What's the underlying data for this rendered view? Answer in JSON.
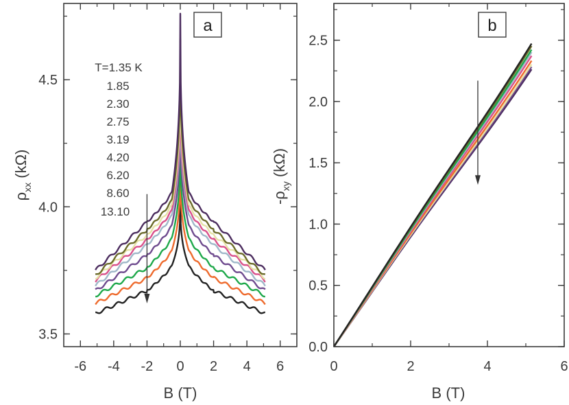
{
  "chart_data": [
    {
      "panel": "a",
      "type": "line",
      "xlabel": "B (T)",
      "ylabel_main": "ρ",
      "ylabel_sub": "xx",
      "ylabel_unit": " (kΩ)",
      "xlim": [
        -7,
        7
      ],
      "ylim": [
        3.45,
        4.8
      ],
      "xticks": [
        -6,
        -4,
        -2,
        0,
        2,
        4,
        6
      ],
      "yticks": [
        3.5,
        4.0,
        4.5
      ],
      "ytick_labels": [
        "3.5",
        "4.0",
        "4.5"
      ],
      "legend_title": "T=1.35 K",
      "legend_values": [
        "1.85",
        "2.30",
        "2.75",
        "3.19",
        "4.20",
        "6.20",
        "8.60",
        "13.10"
      ],
      "arrow": {
        "x": -2,
        "from_y": 4.05,
        "to_y": 3.62
      },
      "series": [
        {
          "name": "T=1.35 K",
          "color": "#4b2c5e",
          "peak": 4.76,
          "v05": 4.06,
          "v2": 3.94,
          "v5": 3.75
        },
        {
          "name": "1.85",
          "color": "#6b6b2a",
          "peak": 4.66,
          "v05": 4.03,
          "v2": 3.91,
          "v5": 3.73
        },
        {
          "name": "2.30",
          "color": "#e6e2a6",
          "peak": 4.58,
          "v05": 4.01,
          "v2": 3.89,
          "v5": 3.72
        },
        {
          "name": "2.75",
          "color": "#d9508a",
          "peak": 4.52,
          "v05": 3.99,
          "v2": 3.87,
          "v5": 3.71
        },
        {
          "name": "3.19",
          "color": "#9fb7c9",
          "peak": 4.47,
          "v05": 3.97,
          "v2": 3.85,
          "v5": 3.69
        },
        {
          "name": "4.20",
          "color": "#6e4a8e",
          "peak": 4.4,
          "v05": 3.93,
          "v2": 3.81,
          "v5": 3.67
        },
        {
          "name": "6.20",
          "color": "#1ea84a",
          "peak": 4.28,
          "v05": 3.88,
          "v2": 3.76,
          "v5": 3.65
        },
        {
          "name": "8.60",
          "color": "#ee6a2c",
          "peak": 4.18,
          "v05": 3.83,
          "v2": 3.72,
          "v5": 3.62
        },
        {
          "name": "13.10",
          "color": "#222222",
          "peak": 4.04,
          "v05": 3.77,
          "v2": 3.67,
          "v5": 3.58
        }
      ]
    },
    {
      "panel": "b",
      "type": "line",
      "xlabel": "B (T)",
      "ylabel_main": "-ρ",
      "ylabel_sub": "xy",
      "ylabel_unit": " (kΩ)",
      "xlim": [
        0,
        6
      ],
      "ylim": [
        0,
        2.8
      ],
      "xticks": [
        0,
        2,
        4,
        6
      ],
      "yticks": [
        0.0,
        0.5,
        1.0,
        1.5,
        2.0,
        2.5
      ],
      "ytick_labels": [
        "0.0",
        "0.5",
        "1.0",
        "1.5",
        "2.0",
        "2.5"
      ],
      "arrow": {
        "x": 3.75,
        "from_y": 2.17,
        "to_y": 1.32
      },
      "series": [
        {
          "name": "T=1.35 K",
          "color": "#222222",
          "end": 2.49
        },
        {
          "name": "1.85",
          "color": "#6b6b2a",
          "end": 2.47
        },
        {
          "name": "2.30",
          "color": "#1ea84a",
          "end": 2.44
        },
        {
          "name": "2.75",
          "color": "#9fb7c9",
          "end": 2.42
        },
        {
          "name": "3.19",
          "color": "#d9508a",
          "end": 2.39
        },
        {
          "name": "4.20",
          "color": "#ee6a2c",
          "end": 2.35
        },
        {
          "name": "6.20",
          "color": "#e6e2a6",
          "end": 2.32
        },
        {
          "name": "8.60",
          "color": "#6e4a8e",
          "end": 2.3
        },
        {
          "name": "13.10",
          "color": "#4b2c5e",
          "end": 2.28
        }
      ]
    }
  ]
}
